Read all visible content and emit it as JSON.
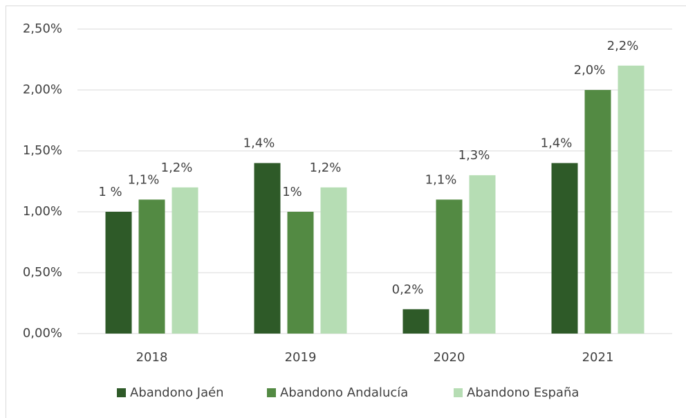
{
  "chart_data": {
    "type": "bar",
    "categories": [
      "2018",
      "2019",
      "2020",
      "2021"
    ],
    "series": [
      {
        "name": "Abandono Jaén",
        "color": "#2e5a28",
        "values": [
          1,
          1.4,
          0.2,
          1.4
        ],
        "value_labels": [
          "1 %",
          "1,4%",
          "0,2%",
          "1,4%"
        ]
      },
      {
        "name": "Abandono Andalucía",
        "color": "#538a43",
        "values": [
          1.1,
          1,
          1.1,
          2.0
        ],
        "value_labels": [
          "1,1%",
          "1%",
          "1,1%",
          "2,0%"
        ]
      },
      {
        "name": "Abandono España",
        "color": "#b6ddb4",
        "values": [
          1.2,
          1.2,
          1.3,
          2.2
        ],
        "value_labels": [
          "1,2%",
          "1,2%",
          "1,3%",
          "2,2%"
        ]
      }
    ],
    "ylim": [
      0,
      2.5
    ],
    "yticks": [
      {
        "value": 0,
        "label": "0,00%"
      },
      {
        "value": 0.5,
        "label": "0,50%"
      },
      {
        "value": 1,
        "label": "1,00%"
      },
      {
        "value": 1.5,
        "label": "1,50%"
      },
      {
        "value": 2,
        "label": "2,00%"
      },
      {
        "value": 2.5,
        "label": "2,50%"
      }
    ],
    "grid": true,
    "legend": "bottom"
  }
}
